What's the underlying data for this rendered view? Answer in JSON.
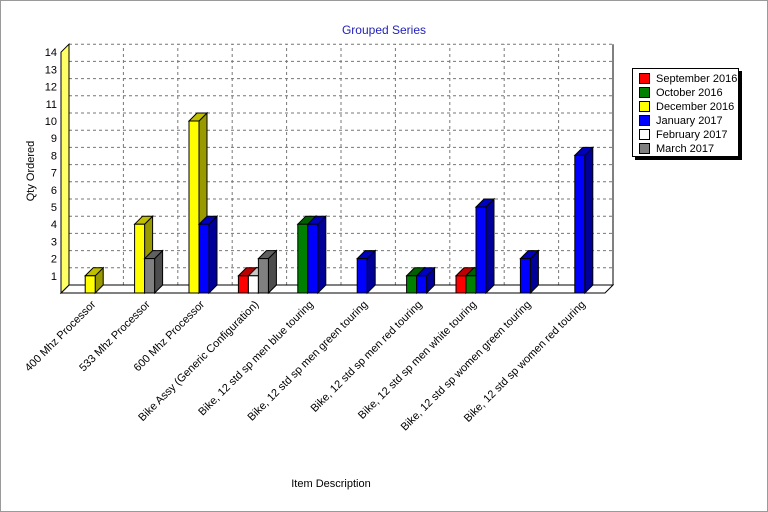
{
  "chart_data": {
    "type": "bar",
    "title": "Grouped Series",
    "xlabel": "Item Description",
    "ylabel": "Qty Ordered",
    "ylim": [
      0,
      14
    ],
    "yticks": [
      "1",
      "2",
      "3",
      "4",
      "5",
      "6",
      "7",
      "8",
      "9",
      "10",
      "11",
      "12",
      "13",
      "14"
    ],
    "grid": true,
    "legend_position": "right",
    "categories": [
      "400 Mhz Processor",
      "533 Mhz Processor",
      "600 Mhz Processor",
      "Bike Assy (Generic Configuration)",
      "Bike, 12 std sp men blue touring",
      "Bike, 12 std sp men green touring",
      "Bike, 12 std sp men red touring",
      "Bike, 12 std sp men white touring",
      "Bike, 12 std sp women green touring",
      "Bike, 12 std sp women red touring"
    ],
    "series": [
      {
        "name": "September 2016",
        "color": "#ff0000",
        "values": [
          0,
          0,
          0,
          1,
          0,
          0,
          0,
          1,
          0,
          0
        ]
      },
      {
        "name": "October 2016",
        "color": "#008000",
        "values": [
          0,
          0,
          0,
          0,
          4,
          0,
          1,
          1,
          0,
          0
        ]
      },
      {
        "name": "December 2016",
        "color": "#ffff00",
        "values": [
          1,
          4,
          10,
          0,
          0,
          0,
          0,
          0,
          0,
          0
        ]
      },
      {
        "name": "January 2017",
        "color": "#0000ff",
        "values": [
          0,
          0,
          4,
          0,
          4,
          2,
          1,
          5,
          2,
          8
        ]
      },
      {
        "name": "February 2017",
        "color": "#ffffff",
        "values": [
          0,
          0,
          0,
          1,
          0,
          0,
          0,
          0,
          0,
          0
        ]
      },
      {
        "name": "March 2017",
        "color": "#808080",
        "values": [
          0,
          2,
          0,
          2,
          0,
          0,
          0,
          0,
          0,
          0
        ]
      }
    ]
  }
}
